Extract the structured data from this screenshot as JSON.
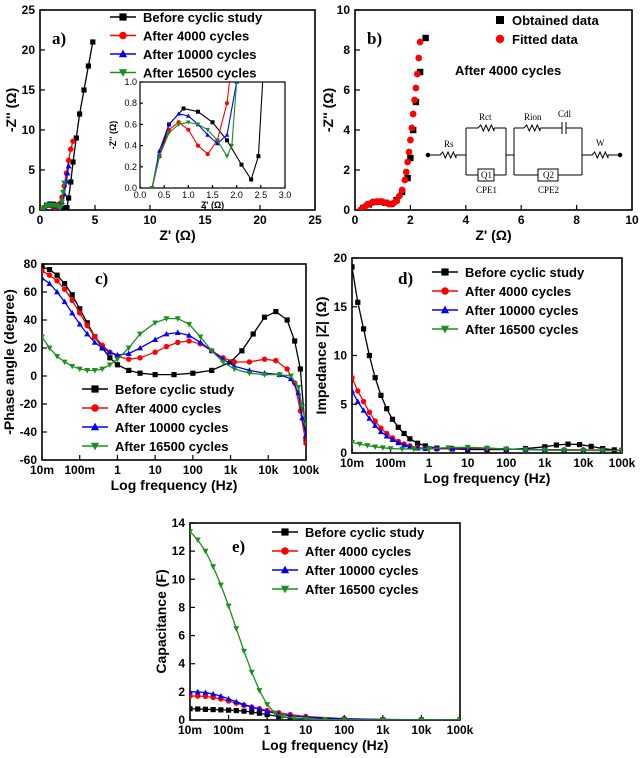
{
  "colors": {
    "Before cyclic study": "#000000",
    "After 4000 cycles": "#ff0000",
    "After 10000 cycles": "#0000ff",
    "After 16500 cycles": "#1a8f1a"
  },
  "markers": {
    "Before cyclic study": "square",
    "After 4000 cycles": "circle",
    "After 10000 cycles": "triangle-up",
    "After 16500 cycles": "triangle-down"
  },
  "chart_data": [
    {
      "id": "a",
      "panel_label": "a)",
      "type": "line",
      "xlabel": "Z' (Ω)",
      "ylabel": "-Z'' (Ω)",
      "xlim": [
        0,
        25
      ],
      "ylim": [
        0,
        25
      ],
      "xticks": [
        0,
        5,
        10,
        15,
        20,
        25
      ],
      "yticks": [
        0,
        5,
        10,
        15,
        20,
        25
      ],
      "legend_position": "top",
      "series": [
        {
          "name": "Before cyclic study",
          "x": [
            0.25,
            0.4,
            0.6,
            0.9,
            1.2,
            1.5,
            1.8,
            2.1,
            2.3,
            2.45,
            2.6,
            2.8,
            3.0,
            3.3,
            3.6,
            4.0,
            4.4,
            4.8
          ],
          "y": [
            0,
            0.3,
            0.6,
            0.75,
            0.72,
            0.62,
            0.45,
            0.22,
            0.08,
            0.3,
            1.5,
            3.5,
            6,
            9,
            12,
            15,
            18,
            21
          ]
        },
        {
          "name": "After 4000 cycles",
          "x": [
            0.25,
            0.4,
            0.6,
            0.8,
            1.0,
            1.2,
            1.4,
            1.6,
            1.8,
            2.0,
            2.2,
            2.4,
            2.6,
            2.8,
            3.0
          ],
          "y": [
            0,
            0.3,
            0.55,
            0.62,
            0.55,
            0.4,
            0.32,
            0.45,
            0.8,
            1.6,
            3,
            4.6,
            6.2,
            7.6,
            8.6
          ]
        },
        {
          "name": "After 10000 cycles",
          "x": [
            0.25,
            0.4,
            0.6,
            0.8,
            1.0,
            1.2,
            1.4,
            1.6,
            1.8,
            2.0,
            2.2,
            2.4,
            2.5,
            2.6
          ],
          "y": [
            0,
            0.35,
            0.6,
            0.7,
            0.68,
            0.6,
            0.5,
            0.42,
            0.5,
            1,
            2,
            3.6,
            4.6,
            5.5
          ]
        },
        {
          "name": "After 16500 cycles",
          "x": [
            0.25,
            0.4,
            0.6,
            0.8,
            1.0,
            1.2,
            1.4,
            1.6,
            1.8,
            1.9,
            2.0,
            2.1,
            2.2
          ],
          "y": [
            0,
            0.3,
            0.52,
            0.6,
            0.62,
            0.6,
            0.55,
            0.45,
            0.3,
            0.4,
            1,
            2.2,
            3.4
          ]
        }
      ],
      "inset": {
        "xlabel": "Z' (Ω)",
        "ylabel": "-Z'' (Ω)",
        "xlim": [
          0,
          3.0
        ],
        "ylim": [
          0,
          1.0
        ],
        "xticks": [
          "0.0",
          "0.5",
          "1.0",
          "1.5",
          "2.0",
          "2.5",
          "3.0"
        ],
        "yticks": [
          "0.0",
          "0.2",
          "0.4",
          "0.6",
          "0.8",
          "1.0"
        ]
      }
    },
    {
      "id": "b",
      "panel_label": "b)",
      "type": "scatter",
      "xlabel": "Z' (Ω)",
      "ylabel": "-Z'' (Ω)",
      "xlim": [
        0,
        10
      ],
      "ylim": [
        0,
        10
      ],
      "xticks": [
        0,
        2,
        4,
        6,
        8,
        10
      ],
      "yticks": [
        0,
        2,
        4,
        6,
        8,
        10
      ],
      "annotation": "After 4000 cycles",
      "legend_position": "top-right",
      "series": [
        {
          "name": "Obtained data",
          "color": "#000000",
          "marker": "square",
          "x": [
            0.3,
            0.5,
            0.7,
            0.9,
            1.1,
            1.3,
            1.5,
            1.7,
            1.9,
            2.0,
            2.1,
            2.2,
            2.35,
            2.55
          ],
          "y": [
            0.1,
            0.28,
            0.4,
            0.42,
            0.36,
            0.3,
            0.5,
            0.9,
            1.6,
            2.6,
            4,
            5.4,
            6.9,
            8.6
          ]
        },
        {
          "name": "Fitted data",
          "color": "#ff0000",
          "marker": "circle",
          "x": [
            0.2,
            0.3,
            0.4,
            0.5,
            0.6,
            0.7,
            0.8,
            0.9,
            1.0,
            1.1,
            1.2,
            1.3,
            1.4,
            1.5,
            1.6,
            1.7,
            1.8,
            1.85,
            1.9,
            1.95,
            2.0,
            2.05,
            2.1,
            2.15,
            2.2,
            2.25,
            2.3,
            2.35
          ],
          "y": [
            0,
            0.12,
            0.22,
            0.3,
            0.36,
            0.4,
            0.42,
            0.42,
            0.4,
            0.36,
            0.32,
            0.3,
            0.35,
            0.45,
            0.7,
            1.0,
            1.5,
            1.9,
            2.4,
            2.9,
            3.5,
            4.1,
            4.8,
            5.5,
            6.1,
            6.8,
            7.6,
            8.4
          ]
        }
      ],
      "circuit": {
        "labels": [
          "Rs",
          "Rct",
          "Q1",
          "CPE1",
          "Rion",
          "Cdl",
          "Q2",
          "CPE2",
          "W"
        ]
      }
    },
    {
      "id": "c",
      "panel_label": "c)",
      "type": "line",
      "xlabel": "Log frequency (Hz)",
      "ylabel": "-Phase angle (degree)",
      "xscale": "log",
      "xlim": [
        0.01,
        100000
      ],
      "ylim": [
        -60,
        80
      ],
      "xticks": [
        "10m",
        "100m",
        "1",
        "10",
        "100",
        "1k",
        "10k",
        "100k"
      ],
      "yticks": [
        -60,
        -40,
        -20,
        0,
        20,
        40,
        60,
        80
      ],
      "legend_position": "bottom-left",
      "series": [
        {
          "name": "Before cyclic study",
          "logx": [
            -2,
            -1.8,
            -1.6,
            -1.4,
            -1.2,
            -1,
            -0.8,
            -0.6,
            -0.4,
            -0.2,
            0,
            0.3,
            0.6,
            1,
            1.5,
            2,
            2.5,
            3,
            3.3,
            3.6,
            3.9,
            4.2,
            4.5,
            4.7,
            4.85,
            5
          ],
          "y": [
            78,
            76,
            72,
            66,
            58,
            48,
            38,
            28,
            20,
            13,
            8,
            4,
            2,
            1,
            1,
            2,
            4,
            10,
            18,
            30,
            42,
            46,
            40,
            25,
            5,
            -45
          ]
        },
        {
          "name": "After 4000 cycles",
          "logx": [
            -2,
            -1.8,
            -1.6,
            -1.4,
            -1.2,
            -1,
            -0.8,
            -0.6,
            -0.4,
            -0.2,
            0,
            0.3,
            0.6,
            1,
            1.3,
            1.6,
            1.9,
            2.2,
            2.5,
            2.8,
            3.1,
            3.5,
            3.9,
            4.2,
            4.5,
            4.7,
            4.85,
            5
          ],
          "y": [
            75,
            72,
            68,
            62,
            54,
            45,
            36,
            28,
            22,
            17,
            14,
            12,
            13,
            17,
            21,
            24,
            25,
            23,
            18,
            13,
            10,
            10,
            12,
            11,
            5,
            -5,
            -25,
            -48
          ]
        },
        {
          "name": "After 10000 cycles",
          "logx": [
            -2,
            -1.8,
            -1.6,
            -1.4,
            -1.2,
            -1,
            -0.8,
            -0.6,
            -0.4,
            -0.2,
            0,
            0.3,
            0.6,
            1,
            1.3,
            1.6,
            1.9,
            2.2,
            2.5,
            2.8,
            3.1,
            3.5,
            3.9,
            4.3,
            4.6,
            4.8,
            4.9,
            5
          ],
          "y": [
            70,
            66,
            60,
            53,
            45,
            37,
            30,
            24,
            20,
            17,
            15,
            16,
            20,
            26,
            30,
            31,
            29,
            24,
            18,
            12,
            7,
            4,
            2,
            1,
            -2,
            -12,
            -30,
            -42
          ]
        },
        {
          "name": "After 16500 cycles",
          "logx": [
            -2,
            -1.8,
            -1.6,
            -1.4,
            -1.2,
            -1,
            -0.8,
            -0.6,
            -0.4,
            -0.2,
            0,
            0.3,
            0.6,
            1,
            1.3,
            1.6,
            1.9,
            2.2,
            2.5,
            2.8,
            3.1,
            3.5,
            3.9,
            4.3,
            4.6,
            4.8,
            4.9,
            5
          ],
          "y": [
            28,
            20,
            14,
            10,
            7,
            5,
            4,
            4,
            5,
            8,
            12,
            20,
            30,
            38,
            41,
            41,
            37,
            28,
            18,
            10,
            5,
            2,
            1,
            1,
            0,
            -8,
            -22,
            -35
          ]
        }
      ]
    },
    {
      "id": "d",
      "panel_label": "d)",
      "type": "line",
      "xlabel": "Log frequency (Hz)",
      "ylabel": "Impedance |Z| (Ω)",
      "xscale": "log",
      "xlim": [
        0.01,
        100000
      ],
      "ylim": [
        0,
        22
      ],
      "xticks": [
        "10m",
        "100m",
        "1",
        "10",
        "100",
        "1k",
        "10k",
        "100k"
      ],
      "yticks": [
        0,
        5,
        10,
        15,
        20
      ],
      "legend_position": "top-right",
      "series": [
        {
          "name": "Before cyclic study",
          "logx": [
            -2,
            -1.85,
            -1.7,
            -1.55,
            -1.4,
            -1.25,
            -1.1,
            -0.95,
            -0.8,
            -0.65,
            -0.5,
            -0.3,
            -0.1,
            0.2,
            0.6,
            1,
            1.5,
            2,
            2.5,
            3,
            3.3,
            3.6,
            3.9,
            4.2,
            4.5,
            4.8,
            5
          ],
          "y": [
            21,
            17,
            14,
            11,
            8.5,
            6.5,
            5,
            3.8,
            2.9,
            2.2,
            1.6,
            1.1,
            0.8,
            0.55,
            0.45,
            0.4,
            0.38,
            0.4,
            0.5,
            0.7,
            0.9,
            1.0,
            0.95,
            0.75,
            0.5,
            0.35,
            0.3
          ]
        },
        {
          "name": "After 4000 cycles",
          "logx": [
            -2,
            -1.85,
            -1.7,
            -1.55,
            -1.4,
            -1.25,
            -1.1,
            -0.95,
            -0.8,
            -0.65,
            -0.5,
            -0.3,
            -0.1,
            0.2,
            0.6,
            1,
            1.5,
            2,
            2.5,
            3,
            3.5,
            4,
            4.5,
            5
          ],
          "y": [
            8.5,
            7,
            5.8,
            4.6,
            3.6,
            2.8,
            2.2,
            1.7,
            1.3,
            1.0,
            0.8,
            0.6,
            0.5,
            0.45,
            0.5,
            0.55,
            0.5,
            0.45,
            0.4,
            0.38,
            0.36,
            0.35,
            0.33,
            0.3
          ]
        },
        {
          "name": "After 10000 cycles",
          "logx": [
            -2,
            -1.85,
            -1.7,
            -1.55,
            -1.4,
            -1.25,
            -1.1,
            -0.95,
            -0.8,
            -0.65,
            -0.5,
            -0.3,
            -0.1,
            0.2,
            0.6,
            1,
            1.5,
            2,
            2.5,
            3,
            3.5,
            4,
            4.5,
            5
          ],
          "y": [
            7,
            5.8,
            4.8,
            3.9,
            3.1,
            2.4,
            1.9,
            1.5,
            1.15,
            0.9,
            0.7,
            0.55,
            0.5,
            0.5,
            0.55,
            0.6,
            0.55,
            0.45,
            0.4,
            0.36,
            0.33,
            0.3,
            0.3,
            0.28
          ]
        },
        {
          "name": "After 16500 cycles",
          "logx": [
            -2,
            -1.8,
            -1.6,
            -1.4,
            -1.2,
            -1,
            -0.7,
            -0.4,
            0,
            0.5,
            1,
            1.5,
            2,
            2.5,
            3,
            3.5,
            4,
            4.5,
            5
          ],
          "y": [
            1.2,
            1.0,
            0.85,
            0.7,
            0.6,
            0.5,
            0.45,
            0.45,
            0.5,
            0.6,
            0.65,
            0.55,
            0.45,
            0.38,
            0.33,
            0.3,
            0.28,
            0.27,
            0.25
          ]
        }
      ]
    },
    {
      "id": "e",
      "panel_label": "e)",
      "type": "line",
      "xlabel": "Log frequency (Hz)",
      "ylabel": "Capacitance (F)",
      "xscale": "log",
      "xlim": [
        0.01,
        100000
      ],
      "ylim": [
        0,
        14
      ],
      "xticks": [
        "10m",
        "100m",
        "1",
        "10",
        "100",
        "1k",
        "10k",
        "100k"
      ],
      "yticks": [
        0,
        2,
        4,
        6,
        8,
        10,
        12,
        14
      ],
      "legend_position": "top-right",
      "series": [
        {
          "name": "Before cyclic study",
          "logx": [
            -2,
            -1.8,
            -1.6,
            -1.4,
            -1.2,
            -1,
            -0.8,
            -0.6,
            -0.4,
            -0.2,
            0,
            0.3,
            0.6,
            1,
            2,
            3,
            4,
            5
          ],
          "y": [
            0.8,
            0.78,
            0.76,
            0.74,
            0.72,
            0.7,
            0.67,
            0.63,
            0.57,
            0.48,
            0.38,
            0.25,
            0.15,
            0.08,
            0.04,
            0.02,
            0.01,
            0.01
          ]
        },
        {
          "name": "After 4000 cycles",
          "logx": [
            -2,
            -1.8,
            -1.6,
            -1.4,
            -1.2,
            -1,
            -0.8,
            -0.6,
            -0.4,
            -0.2,
            0,
            0.3,
            0.6,
            1,
            2,
            3,
            4,
            5
          ],
          "y": [
            1.7,
            1.7,
            1.68,
            1.6,
            1.5,
            1.35,
            1.2,
            1.05,
            0.92,
            0.8,
            0.68,
            0.52,
            0.38,
            0.25,
            0.1,
            0.04,
            0.02,
            0.01
          ]
        },
        {
          "name": "After 10000 cycles",
          "logx": [
            -2,
            -1.8,
            -1.6,
            -1.4,
            -1.2,
            -1,
            -0.8,
            -0.6,
            -0.4,
            -0.2,
            0,
            0.3,
            0.6,
            1,
            2,
            3,
            4,
            5
          ],
          "y": [
            2.0,
            2.0,
            1.95,
            1.85,
            1.7,
            1.5,
            1.3,
            1.1,
            0.92,
            0.76,
            0.6,
            0.42,
            0.3,
            0.2,
            0.08,
            0.03,
            0.01,
            0.01
          ]
        },
        {
          "name": "After 16500 cycles",
          "logx": [
            -2,
            -1.8,
            -1.6,
            -1.4,
            -1.2,
            -1,
            -0.8,
            -0.6,
            -0.4,
            -0.2,
            0,
            0.2,
            0.4,
            0.7,
            1,
            1.5,
            2,
            3,
            4,
            5
          ],
          "y": [
            13.4,
            12.8,
            12.0,
            10.9,
            9.6,
            8.1,
            6.5,
            4.9,
            3.4,
            2.1,
            1.1,
            0.5,
            0.25,
            0.12,
            0.06,
            0.03,
            0.02,
            0.01,
            0.01,
            0.01
          ]
        }
      ]
    }
  ]
}
